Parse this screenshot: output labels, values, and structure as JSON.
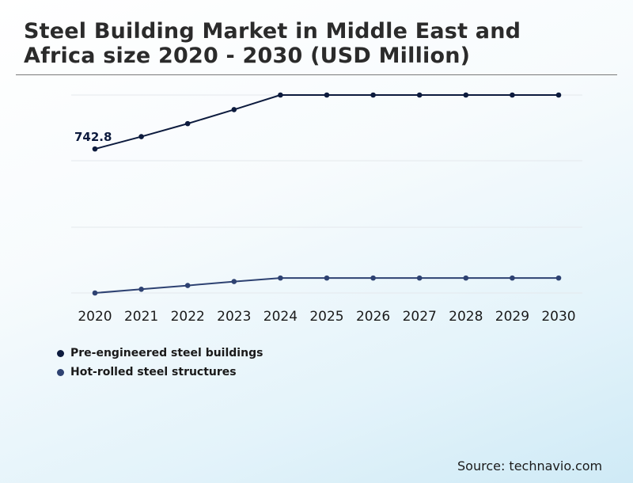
{
  "title": "Steel Building Market in Middle East and Africa size 2020 - 2030 (USD Million)",
  "source": "Source: technavio.com",
  "chart_data": {
    "type": "line",
    "title": "Steel Building Market in Middle East and Africa size 2020 - 2030 (USD Million)",
    "x": [
      "2020",
      "2021",
      "2022",
      "2023",
      "2024",
      "2025",
      "2026",
      "2027",
      "2028",
      "2029",
      "2030"
    ],
    "series": [
      {
        "name": "Pre-engineered steel buildings",
        "color": "#0d1b3e",
        "values": [
          742.8,
          770.9,
          800.5,
          832.4,
          865.6,
          865.6,
          865.6,
          865.6,
          865.6,
          865.6,
          865.6
        ]
      },
      {
        "name": "Hot-rolled steel structures",
        "color": "#2e4272",
        "values": [
          415.0,
          423.5,
          432.0,
          441.0,
          449.0,
          449.0,
          449.0,
          449.0,
          449.0,
          449.0,
          449.0
        ]
      }
    ],
    "data_labels": [
      {
        "series": 0,
        "index": 0,
        "text": "742.8"
      }
    ],
    "ylim": [
      415,
      865.6
    ],
    "grid": true,
    "legend_position": "bottom-left",
    "xlabel": "",
    "ylabel": ""
  }
}
